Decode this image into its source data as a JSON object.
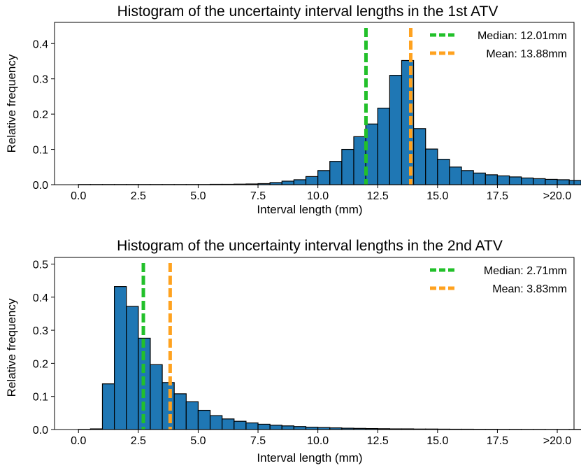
{
  "chart_data": [
    {
      "type": "bar",
      "title": "Histogram of the uncertainty interval lengths in the 1st ATV",
      "xlabel": "Interval length (mm)",
      "ylabel": "Relative frequency",
      "xlim": [
        -1.0,
        20.7
      ],
      "ylim": [
        0,
        0.46
      ],
      "xticks": [
        0,
        2.5,
        5,
        7.5,
        10,
        12.5,
        15,
        17.5,
        20
      ],
      "xtick_labels": [
        "0.0",
        "2.5",
        "5.0",
        "7.5",
        "10.0",
        "12.5",
        "15.0",
        "17.5",
        ">20.0"
      ],
      "yticks": [
        0,
        0.1,
        0.2,
        0.3,
        0.4
      ],
      "ytick_labels": [
        "0.0",
        "0.1",
        "0.2",
        "0.3",
        "0.4"
      ],
      "bin_start": 0,
      "bin_width": 0.5,
      "values": [
        0.0005,
        0.0005,
        0.0005,
        0.0005,
        0.0005,
        0.0005,
        0.0005,
        0.0005,
        0.0005,
        0.0005,
        0.0005,
        0.001,
        0.001,
        0.0015,
        0.002,
        0.003,
        0.006,
        0.01,
        0.014,
        0.023,
        0.04,
        0.066,
        0.1,
        0.136,
        0.172,
        0.217,
        0.31,
        0.352,
        0.159,
        0.101,
        0.072,
        0.05,
        0.04,
        0.033,
        0.028,
        0.025,
        0.022,
        0.019,
        0.017,
        0.015,
        0.014,
        0.012,
        0.011,
        0.01,
        0.009,
        0.008,
        0.007,
        0.006,
        0.005,
        0.012
      ],
      "bar_color": "#1f77b4",
      "lines": [
        {
          "label": "Median: 12.01mm",
          "x": 12.01,
          "color": "#22c02a"
        },
        {
          "label": "Mean: 13.88mm",
          "x": 13.88,
          "color": "#ffa21f"
        }
      ],
      "legend": "top-right",
      "grid": false
    },
    {
      "type": "bar",
      "title": "Histogram of the uncertainty interval lengths in the 2nd ATV",
      "xlabel": "Interval length (mm)",
      "ylabel": "Relative frequency",
      "xlim": [
        -1.0,
        20.7
      ],
      "ylim": [
        0,
        0.52
      ],
      "xticks": [
        0,
        2.5,
        5,
        7.5,
        10,
        12.5,
        15,
        17.5,
        20
      ],
      "xtick_labels": [
        "0.0",
        "2.5",
        "5.0",
        "7.5",
        "10.0",
        "12.5",
        "15.0",
        "17.5",
        ">20.0"
      ],
      "yticks": [
        0,
        0.1,
        0.2,
        0.3,
        0.4,
        0.5
      ],
      "ytick_labels": [
        "0.0",
        "0.1",
        "0.2",
        "0.3",
        "0.4",
        "0.5"
      ],
      "bin_start": 0,
      "bin_width": 0.5,
      "values": [
        0.0005,
        0.002,
        0.138,
        0.432,
        0.372,
        0.276,
        0.196,
        0.142,
        0.108,
        0.084,
        0.058,
        0.042,
        0.032,
        0.025,
        0.02,
        0.016,
        0.013,
        0.011,
        0.009,
        0.007,
        0.006,
        0.005,
        0.004,
        0.0035,
        0.003,
        0.0025,
        0.002,
        0.002,
        0.0015,
        0.0015,
        0.0012,
        0.001,
        0.001,
        0.0008,
        0.0008,
        0.0006,
        0.0006,
        0.0005,
        0.0005,
        0.0004,
        0.0004,
        0.0004,
        0.0003,
        0.0003,
        0.0003,
        0.0003,
        0.0002,
        0.0002,
        0.0002,
        0.0005
      ],
      "bar_color": "#1f77b4",
      "lines": [
        {
          "label": "Median:   2.71mm",
          "x": 2.71,
          "color": "#22c02a"
        },
        {
          "label": "Mean:   3.83mm",
          "x": 3.83,
          "color": "#ffa21f"
        }
      ],
      "legend": "top-right",
      "grid": false
    }
  ]
}
